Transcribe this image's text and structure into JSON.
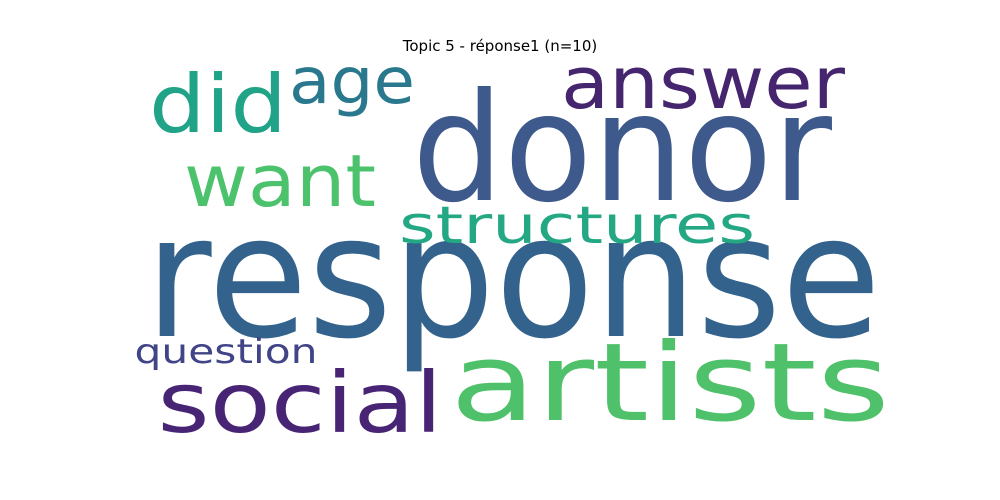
{
  "title": "Topic 5 - réponse1 (n=10)",
  "words": [
    {
      "text": "response",
      "color": "#33638d"
    },
    {
      "text": "donor",
      "color": "#3e598c"
    },
    {
      "text": "artists",
      "color": "#4fc16b"
    },
    {
      "text": "social",
      "color": "#482475"
    },
    {
      "text": "answer",
      "color": "#46256f"
    },
    {
      "text": "structures",
      "color": "#23a883"
    },
    {
      "text": "want",
      "color": "#4cc26c"
    },
    {
      "text": "did",
      "color": "#20a386"
    },
    {
      "text": "age",
      "color": "#2a788e"
    },
    {
      "text": "question",
      "color": "#414487"
    }
  ]
}
